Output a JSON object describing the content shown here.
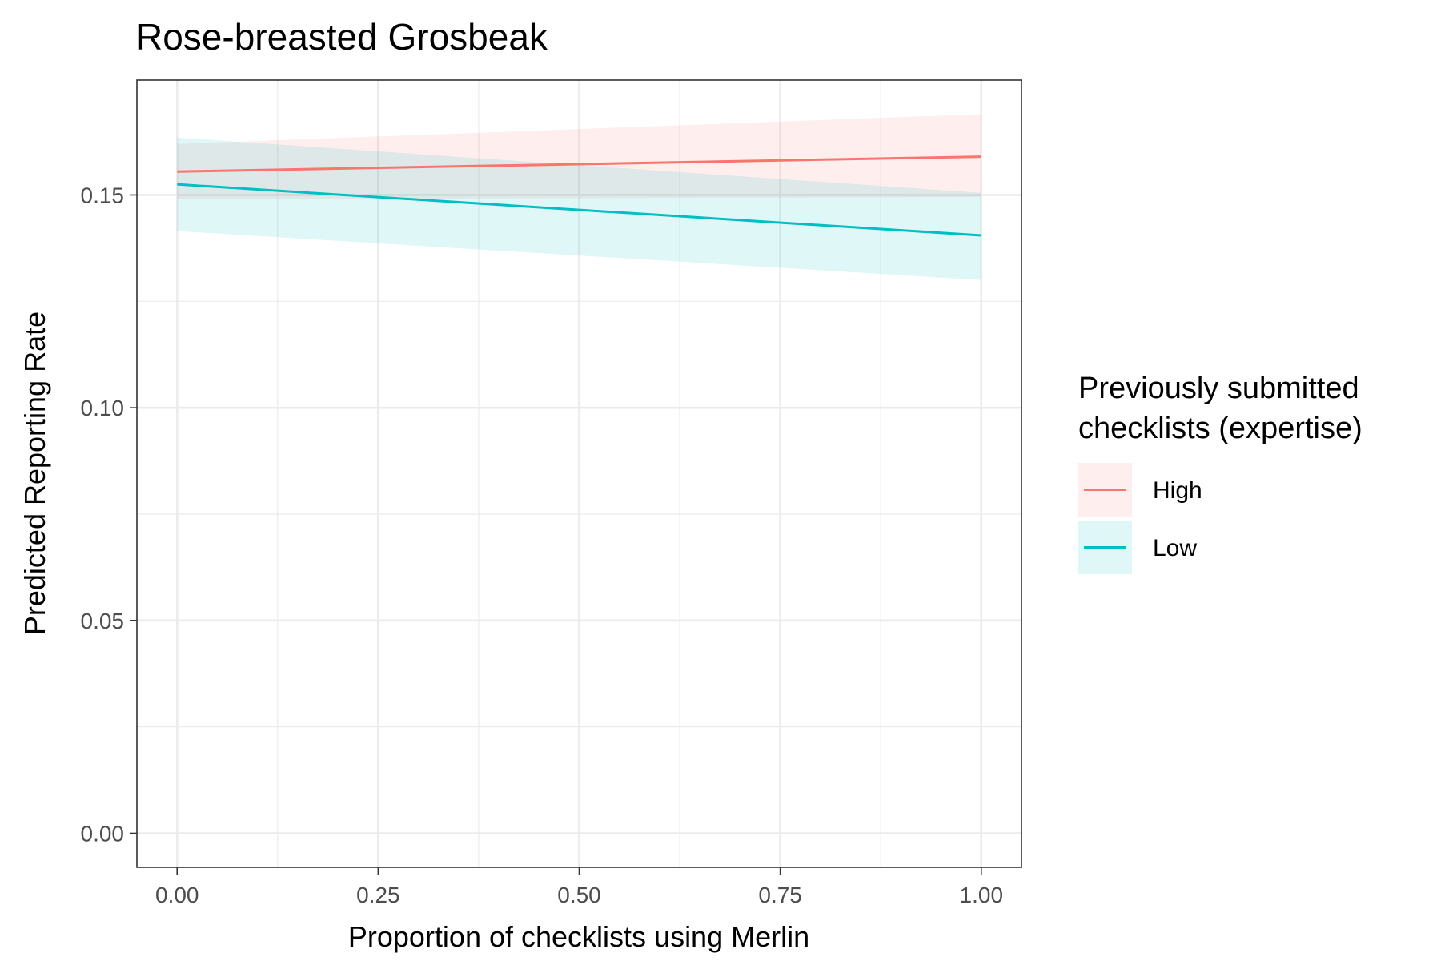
{
  "chart_data": {
    "type": "line",
    "title": "Rose-breasted Grosbeak",
    "xlabel": "Proportion of checklists using Merlin",
    "ylabel": "Predicted Reporting Rate",
    "xlim": [
      -0.05,
      1.05
    ],
    "ylim": [
      -0.008,
      0.177
    ],
    "x_ticks": [
      "0.00",
      "0.25",
      "0.50",
      "0.75",
      "1.00"
    ],
    "y_ticks": [
      "0.00",
      "0.05",
      "0.10",
      "0.15"
    ],
    "grid": true,
    "legend": {
      "title_lines": [
        "Previously submitted",
        "checklists (expertise)"
      ],
      "placement": "right"
    },
    "series": [
      {
        "name": "High",
        "color": "#F8766D",
        "x": [
          0,
          1
        ],
        "y": [
          0.1555,
          0.159
        ],
        "ci_lower": [
          0.149,
          0.1495
        ],
        "ci_upper": [
          0.162,
          0.169
        ]
      },
      {
        "name": "Low",
        "color": "#00BFC4",
        "x": [
          0,
          1
        ],
        "y": [
          0.1525,
          0.1405
        ],
        "ci_lower": [
          0.1415,
          0.13
        ],
        "ci_upper": [
          0.1635,
          0.1505
        ]
      }
    ]
  }
}
